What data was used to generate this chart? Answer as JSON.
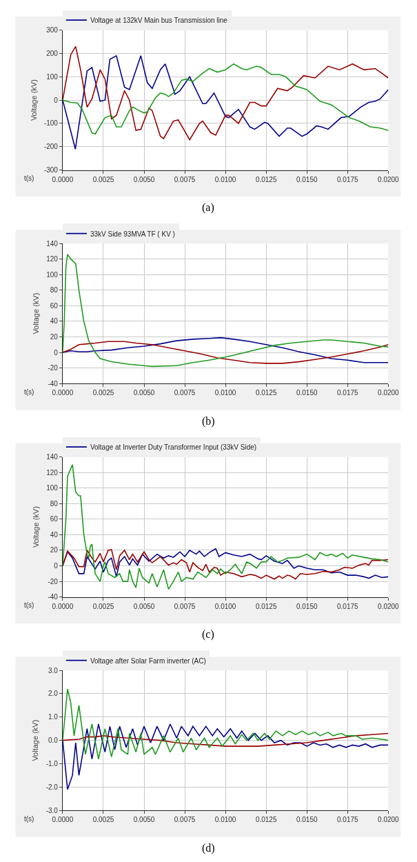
{
  "chart_data": [
    {
      "type": "line",
      "xlabel": "t(s)",
      "ylabel": "Voltage (kV)",
      "legend": "top left",
      "grid": true,
      "annotations": [
        "(a)"
      ],
      "xlim": [
        0,
        0.02
      ],
      "xticks": [
        {
          "value": 0,
          "label": "0.0000"
        },
        {
          "value": 0.0025,
          "label": "0.0025"
        },
        {
          "value": 0.005,
          "label": "0.0050"
        },
        {
          "value": 0.0075,
          "label": "0.0075"
        },
        {
          "value": 0.01,
          "label": "0.0100"
        },
        {
          "value": 0.0125,
          "label": "0.0125"
        },
        {
          "value": 0.015,
          "label": "0.0150"
        },
        {
          "value": 0.0175,
          "label": "0.0175"
        },
        {
          "value": 0.02,
          "label": "0.0200"
        }
      ],
      "ylim": [
        -300,
        300
      ],
      "yticks": [
        -300,
        -200,
        -100,
        0,
        100,
        200,
        300
      ],
      "series": [
        {
          "name": "Voltage at 132kV Main bus Transmission line",
          "color": "#00008b",
          "x": [
            0,
            0.0003,
            0.00078,
            0.0015,
            0.0018,
            0.0023,
            0.0026,
            0.0029,
            0.0033,
            0.0038,
            0.0041,
            0.0048,
            0.0052,
            0.0055,
            0.006,
            0.0063,
            0.0069,
            0.0072,
            0.0078,
            0.0086,
            0.0088,
            0.0093,
            0.01,
            0.0102,
            0.0108,
            0.0115,
            0.0118,
            0.0124,
            0.0126,
            0.0133,
            0.0138,
            0.014,
            0.0147,
            0.015,
            0.0156,
            0.0159,
            0.0163,
            0.0171,
            0.0176,
            0.0183,
            0.0188,
            0.0192,
            0.0195,
            0.02
          ],
          "values": [
            0,
            -80,
            -210,
            125,
            140,
            -5,
            0,
            175,
            190,
            55,
            45,
            190,
            75,
            50,
            130,
            155,
            25,
            40,
            100,
            -15,
            -15,
            30,
            -70,
            -75,
            -40,
            -115,
            -125,
            -95,
            -100,
            -155,
            -120,
            -120,
            -155,
            -145,
            -110,
            -115,
            -125,
            -75,
            -70,
            -30,
            -10,
            -5,
            5,
            45
          ]
        },
        {
          "color": "#990000",
          "x": [
            0,
            0.0005,
            0.0008,
            0.0011,
            0.0015,
            0.0018,
            0.0023,
            0.0026,
            0.003,
            0.0033,
            0.0038,
            0.0041,
            0.0045,
            0.0048,
            0.0053,
            0.0055,
            0.006,
            0.0062,
            0.0068,
            0.0071,
            0.0078,
            0.0084,
            0.0086,
            0.0091,
            0.0094,
            0.01,
            0.0102,
            0.0108,
            0.0115,
            0.0118,
            0.0122,
            0.0125,
            0.0132,
            0.0138,
            0.0141,
            0.0148,
            0.0155,
            0.0163,
            0.017,
            0.0178,
            0.0185,
            0.0192,
            0.02
          ],
          "values": [
            0,
            195,
            230,
            130,
            -30,
            5,
            130,
            90,
            -80,
            -65,
            40,
            0,
            -130,
            -125,
            -35,
            -45,
            -155,
            -165,
            -90,
            -85,
            -170,
            -100,
            -90,
            -140,
            -150,
            -65,
            -65,
            -100,
            -10,
            -10,
            -25,
            -25,
            50,
            40,
            55,
            105,
            95,
            145,
            130,
            155,
            130,
            135,
            95
          ]
        },
        {
          "color": "#1f9a1f",
          "x": [
            0,
            0.0005,
            0.0009,
            0.0012,
            0.0018,
            0.002,
            0.0026,
            0.003,
            0.0033,
            0.0036,
            0.0041,
            0.0043,
            0.0047,
            0.005,
            0.0052,
            0.0057,
            0.006,
            0.0063,
            0.0065,
            0.0068,
            0.0073,
            0.0076,
            0.008,
            0.0085,
            0.009,
            0.0095,
            0.01,
            0.0105,
            0.011,
            0.0113,
            0.0119,
            0.0122,
            0.0128,
            0.0133,
            0.0137,
            0.0143,
            0.015,
            0.0158,
            0.0165,
            0.017,
            0.0176,
            0.0182,
            0.0189,
            0.0195,
            0.02
          ],
          "values": [
            0,
            -10,
            -12,
            -40,
            -140,
            -145,
            -75,
            -65,
            -115,
            -115,
            -45,
            -30,
            -45,
            -55,
            -50,
            10,
            30,
            25,
            15,
            30,
            85,
            90,
            80,
            110,
            135,
            120,
            130,
            155,
            135,
            130,
            145,
            140,
            110,
            110,
            100,
            60,
            45,
            -5,
            -20,
            -45,
            -75,
            -90,
            -115,
            -120,
            -130
          ]
        }
      ]
    },
    {
      "type": "line",
      "xlabel": "t(s)",
      "ylabel": "Voltage (kV)",
      "legend": "top left",
      "grid": true,
      "annotations": [
        "(b)"
      ],
      "xlim": [
        0,
        0.02
      ],
      "xticks": [
        {
          "value": 0,
          "label": "0.0000"
        },
        {
          "value": 0.0025,
          "label": "0.0025"
        },
        {
          "value": 0.005,
          "label": "0.0050"
        },
        {
          "value": 0.0075,
          "label": "0.0075"
        },
        {
          "value": 0.01,
          "label": "0.0100"
        },
        {
          "value": 0.0125,
          "label": "0.0125"
        },
        {
          "value": 0.015,
          "label": "0.0150"
        },
        {
          "value": 0.0175,
          "label": "0.0175"
        },
        {
          "value": 0.02,
          "label": "0.0200"
        }
      ],
      "ylim": [
        -40,
        140
      ],
      "yticks": [
        -40,
        -20,
        0,
        20,
        40,
        60,
        80,
        100,
        120,
        140
      ],
      "series": [
        {
          "name": "33kV Side 93MVA TF ( KV )",
          "color": "#00008b",
          "x": [
            0,
            0.0005,
            0.001,
            0.0015,
            0.002,
            0.003,
            0.004,
            0.005,
            0.006,
            0.007,
            0.008,
            0.009,
            0.0097,
            0.0105,
            0.0115,
            0.0125,
            0.0135,
            0.0145,
            0.0155,
            0.0165,
            0.0175,
            0.0185,
            0.02
          ],
          "values": [
            0,
            2,
            1,
            1,
            2,
            3,
            6,
            8,
            11,
            15,
            17,
            18,
            19,
            17,
            14,
            10,
            6,
            1,
            -3,
            -8,
            -10,
            -13,
            -13
          ]
        },
        {
          "color": "#990000",
          "x": [
            0,
            0.0005,
            0.001,
            0.0015,
            0.002,
            0.0028,
            0.0038,
            0.0045,
            0.0055,
            0.0065,
            0.0075,
            0.0085,
            0.0095,
            0.0105,
            0.0115,
            0.0125,
            0.0135,
            0.0145,
            0.0155,
            0.0165,
            0.0175,
            0.0185,
            0.0195,
            0.02
          ],
          "values": [
            0,
            4,
            10,
            11,
            12,
            14,
            14,
            12,
            10,
            6,
            2,
            -2,
            -7,
            -10,
            -13,
            -14,
            -14,
            -12,
            -9,
            -6,
            -2,
            2,
            7,
            10
          ]
        },
        {
          "color": "#1f9a1f",
          "x": [
            0,
            0.0001,
            0.0002,
            0.0003,
            0.0005,
            0.0008,
            0.001,
            0.0013,
            0.0016,
            0.002,
            0.0023,
            0.003,
            0.004,
            0.005,
            0.0055,
            0.007,
            0.008,
            0.009,
            0.01,
            0.011,
            0.012,
            0.013,
            0.014,
            0.015,
            0.016,
            0.0165,
            0.0175,
            0.0185,
            0.0195,
            0.02
          ],
          "values": [
            0,
            40,
            110,
            126,
            120,
            114,
            80,
            40,
            15,
            0,
            -8,
            -12,
            -15,
            -17,
            -18,
            -17,
            -13,
            -10,
            -6,
            -1,
            4,
            9,
            12,
            14,
            16,
            16,
            14,
            12,
            8,
            7
          ]
        }
      ]
    },
    {
      "type": "line",
      "xlabel": "t(s)",
      "ylabel": "Voltage (kV)",
      "legend": "top left",
      "grid": true,
      "annotations": [
        "(c)"
      ],
      "xlim": [
        0,
        0.02
      ],
      "xticks": [
        {
          "value": 0,
          "label": "0.0000"
        },
        {
          "value": 0.0025,
          "label": "0.0025"
        },
        {
          "value": 0.005,
          "label": "0.0050"
        },
        {
          "value": 0.0075,
          "label": "0.0075"
        },
        {
          "value": 0.01,
          "label": "0.0100"
        },
        {
          "value": 0.0125,
          "label": "0.0125"
        },
        {
          "value": 0.015,
          "label": "0.0150"
        },
        {
          "value": 0.0175,
          "label": "0.0175"
        },
        {
          "value": 0.02,
          "label": "0.0200"
        }
      ],
      "ylim": [
        -40,
        140
      ],
      "yticks": [
        -40,
        -20,
        0,
        20,
        40,
        60,
        80,
        100,
        120,
        140
      ],
      "series": [
        {
          "name": "Voltage at Inverter Duty Transformer Input (33kV Side)",
          "color": "#00008b",
          "x": [
            0,
            0.0003,
            0.0006,
            0.001,
            0.0013,
            0.0015,
            0.002,
            0.0023,
            0.0025,
            0.0028,
            0.003,
            0.0033,
            0.0035,
            0.0038,
            0.0041,
            0.0043,
            0.0046,
            0.0049,
            0.0053,
            0.0058,
            0.0062,
            0.0065,
            0.0068,
            0.0072,
            0.0075,
            0.0078,
            0.0082,
            0.0084,
            0.0087,
            0.009,
            0.0094,
            0.0096,
            0.01,
            0.0105,
            0.011,
            0.0115,
            0.012,
            0.0122,
            0.0125,
            0.013,
            0.0135,
            0.0138,
            0.0142,
            0.0145,
            0.015,
            0.0155,
            0.016,
            0.0165,
            0.017,
            0.0175,
            0.018,
            0.0185,
            0.0188,
            0.0192,
            0.0196,
            0.02
          ],
          "values": [
            0,
            18,
            10,
            -10,
            -10,
            12,
            -4,
            6,
            -8,
            7,
            10,
            -14,
            5,
            12,
            1,
            9,
            1,
            15,
            6,
            15,
            10,
            13,
            11,
            18,
            12,
            20,
            15,
            19,
            12,
            17,
            22,
            12,
            17,
            14,
            12,
            15,
            9,
            8,
            13,
            6,
            3,
            7,
            -3,
            0,
            -3,
            -5,
            -5,
            -9,
            -8,
            -12,
            -12,
            -14,
            -16,
            -12,
            -15,
            -14
          ]
        },
        {
          "color": "#990000",
          "x": [
            0,
            0.0003,
            0.0007,
            0.001,
            0.0013,
            0.0015,
            0.0018,
            0.002,
            0.0023,
            0.0025,
            0.0028,
            0.003,
            0.0033,
            0.0035,
            0.0038,
            0.0041,
            0.0043,
            0.0046,
            0.005,
            0.0053,
            0.0055,
            0.006,
            0.0065,
            0.0068,
            0.007,
            0.0073,
            0.0076,
            0.0078,
            0.008,
            0.0083,
            0.0086,
            0.0088,
            0.009,
            0.0093,
            0.0095,
            0.0097,
            0.01,
            0.0105,
            0.011,
            0.0115,
            0.0118,
            0.0122,
            0.0125,
            0.013,
            0.0133,
            0.0135,
            0.0138,
            0.014,
            0.0143,
            0.0146,
            0.015,
            0.0155,
            0.016,
            0.0165,
            0.017,
            0.0173,
            0.0178,
            0.0182,
            0.0186,
            0.0188,
            0.019,
            0.0195,
            0.02
          ],
          "values": [
            0,
            19,
            10,
            -1,
            -1,
            20,
            10,
            5,
            16,
            5,
            20,
            21,
            -5,
            13,
            20,
            8,
            15,
            5,
            18,
            8,
            4,
            12,
            1,
            4,
            2,
            8,
            4,
            -8,
            4,
            -2,
            -6,
            2,
            -8,
            -2,
            -3,
            -12,
            -8,
            -10,
            -14,
            -11,
            -12,
            -16,
            -12,
            -17,
            -13,
            -16,
            -12,
            -13,
            -17,
            -10,
            -11,
            -10,
            -7,
            -8,
            -5,
            -2,
            -3,
            1,
            3,
            1,
            7,
            7,
            8
          ]
        },
        {
          "color": "#1f9a1f",
          "x": [
            0,
            0.0002,
            0.0003,
            0.0005,
            0.0006,
            0.0008,
            0.001,
            0.0011,
            0.0013,
            0.0015,
            0.0016,
            0.0017,
            0.0018,
            0.0019,
            0.002,
            0.0023,
            0.0025,
            0.0026,
            0.0028,
            0.0032,
            0.0035,
            0.0037,
            0.004,
            0.0041,
            0.0043,
            0.0045,
            0.0047,
            0.0049,
            0.0053,
            0.0055,
            0.0058,
            0.0062,
            0.0065,
            0.0068,
            0.0071,
            0.0073,
            0.0076,
            0.008,
            0.0083,
            0.0086,
            0.0088,
            0.0092,
            0.0095,
            0.0097,
            0.01,
            0.0103,
            0.0106,
            0.011,
            0.0113,
            0.0116,
            0.0119,
            0.0122,
            0.0125,
            0.0128,
            0.0132,
            0.0135,
            0.0138,
            0.0145,
            0.015,
            0.0155,
            0.0158,
            0.0162,
            0.0165,
            0.0168,
            0.0172,
            0.0175,
            0.0178,
            0.0185,
            0.019,
            0.0195,
            0.02
          ],
          "values": [
            0,
            60,
            115,
            125,
            130,
            95,
            90,
            90,
            40,
            15,
            10,
            25,
            28,
            5,
            -10,
            -20,
            0,
            5,
            -10,
            -15,
            -10,
            -20,
            -20,
            -5,
            -20,
            -28,
            -3,
            -15,
            -22,
            -10,
            -27,
            -5,
            -30,
            -20,
            -8,
            -20,
            -15,
            -17,
            -8,
            -12,
            -15,
            -5,
            -10,
            -4,
            -10,
            -5,
            2,
            -10,
            5,
            2,
            -3,
            5,
            5,
            12,
            5,
            7,
            10,
            11,
            15,
            8,
            17,
            13,
            15,
            12,
            16,
            10,
            14,
            11,
            9,
            8,
            5
          ]
        }
      ]
    },
    {
      "type": "line",
      "xlabel": "t(s)",
      "ylabel": "Voltage (kV)",
      "legend": "top left",
      "grid": true,
      "annotations": [
        "(d)"
      ],
      "xlim": [
        0,
        0.02
      ],
      "xticks": [
        {
          "value": 0,
          "label": "0.0000"
        },
        {
          "value": 0.0025,
          "label": "0.0025"
        },
        {
          "value": 0.005,
          "label": "0.0050"
        },
        {
          "value": 0.0075,
          "label": "0.0075"
        },
        {
          "value": 0.01,
          "label": "0.0100"
        },
        {
          "value": 0.0125,
          "label": "0.0125"
        },
        {
          "value": 0.015,
          "label": "0.0150"
        },
        {
          "value": 0.0175,
          "label": "0.0175"
        },
        {
          "value": 0.02,
          "label": "0.0200"
        }
      ],
      "ylim": [
        -3,
        3
      ],
      "yticks": [
        {
          "value": -3,
          "label": "-3.0"
        },
        {
          "value": -2,
          "label": "-2.0"
        },
        {
          "value": -1,
          "label": "-1.0"
        },
        {
          "value": 0,
          "label": "0.0"
        },
        {
          "value": 1,
          "label": "1.0"
        },
        {
          "value": 2,
          "label": "2.0"
        },
        {
          "value": 3,
          "label": "3.0"
        }
      ],
      "series": [
        {
          "name": "Voltage after Solar Farm inverter (AC)",
          "color": "#00008b",
          "x": [
            0,
            0.0003,
            0.0006,
            0.0008,
            0.001,
            0.0015,
            0.0018,
            0.0022,
            0.0026,
            0.0029,
            0.0032,
            0.0035,
            0.0039,
            0.0043,
            0.0046,
            0.005,
            0.0054,
            0.0058,
            0.0062,
            0.0066,
            0.007,
            0.0073,
            0.0077,
            0.008,
            0.0084,
            0.0088,
            0.0092,
            0.0095,
            0.0099,
            0.0103,
            0.0107,
            0.011,
            0.0114,
            0.0118,
            0.0122,
            0.0126,
            0.013,
            0.0134,
            0.0138,
            0.0142,
            0.0146,
            0.015,
            0.0154,
            0.0158,
            0.0162,
            0.0166,
            0.017,
            0.0174,
            0.0178,
            0.0182,
            0.0186,
            0.019,
            0.0195,
            0.02
          ],
          "values": [
            0,
            -2.1,
            -1.5,
            -0.1,
            -1.5,
            0.5,
            -0.8,
            0.7,
            -0.5,
            0.6,
            -0.4,
            0.6,
            -0.3,
            0.5,
            -0.2,
            0.6,
            -0.1,
            0.6,
            0,
            0.7,
            0.1,
            0.6,
            0.2,
            0.6,
            0.2,
            0.6,
            0.2,
            0.5,
            0.15,
            0.5,
            0.1,
            0.4,
            0,
            0.3,
            0,
            0.2,
            -0.1,
            0,
            -0.2,
            -0.1,
            -0.1,
            -0.25,
            -0.1,
            -0.2,
            -0.15,
            -0.3,
            -0.2,
            -0.3,
            -0.2,
            -0.25,
            -0.15,
            -0.3,
            -0.2,
            -0.2
          ]
        },
        {
          "color": "#990000",
          "x": [
            0,
            0.001,
            0.0015,
            0.002,
            0.0025,
            0.003,
            0.004,
            0.005,
            0.006,
            0.007,
            0.008,
            0.009,
            0.01,
            0.011,
            0.012,
            0.013,
            0.014,
            0.015,
            0.016,
            0.017,
            0.018,
            0.019,
            0.02
          ],
          "values": [
            0,
            0.05,
            0.15,
            0.15,
            0.2,
            0.15,
            0.1,
            0.05,
            0,
            -0.1,
            -0.15,
            -0.2,
            -0.25,
            -0.25,
            -0.25,
            -0.2,
            -0.15,
            -0.1,
            0,
            0.1,
            0.2,
            0.25,
            0.3
          ]
        },
        {
          "color": "#1f9a1f",
          "x": [
            0,
            0.0003,
            0.0005,
            0.0007,
            0.001,
            0.0014,
            0.0018,
            0.0022,
            0.0026,
            0.003,
            0.0034,
            0.0036,
            0.004,
            0.0041,
            0.0045,
            0.0048,
            0.005,
            0.0055,
            0.0057,
            0.0062,
            0.0066,
            0.0071,
            0.0074,
            0.0079,
            0.0082,
            0.0087,
            0.009,
            0.0095,
            0.0098,
            0.0103,
            0.0106,
            0.011,
            0.0113,
            0.0117,
            0.012,
            0.0124,
            0.0127,
            0.0131,
            0.0135,
            0.0139,
            0.0143,
            0.0147,
            0.0151,
            0.0155,
            0.0158,
            0.0163,
            0.0166,
            0.0171,
            0.0174,
            0.018,
            0.0184,
            0.019,
            0.0196,
            0.02
          ],
          "values": [
            0,
            2.2,
            1.6,
            0.2,
            1.5,
            -0.6,
            0.7,
            -0.8,
            0.5,
            -0.7,
            0.5,
            -0.4,
            -0.6,
            0.3,
            -0.5,
            0.3,
            -0.6,
            -0.3,
            -0.6,
            0.2,
            -0.5,
            0.1,
            -0.5,
            0.1,
            -0.4,
            0.1,
            -0.3,
            0.1,
            -0.25,
            0.2,
            -0.15,
            0.25,
            0,
            0.3,
            0,
            0.3,
            0.05,
            0.4,
            0.2,
            0.4,
            0.25,
            0.4,
            0.25,
            0.35,
            0.2,
            0.35,
            0.2,
            0.3,
            0.2,
            0.2,
            0.05,
            0.1,
            0.05,
            0
          ]
        }
      ]
    }
  ]
}
